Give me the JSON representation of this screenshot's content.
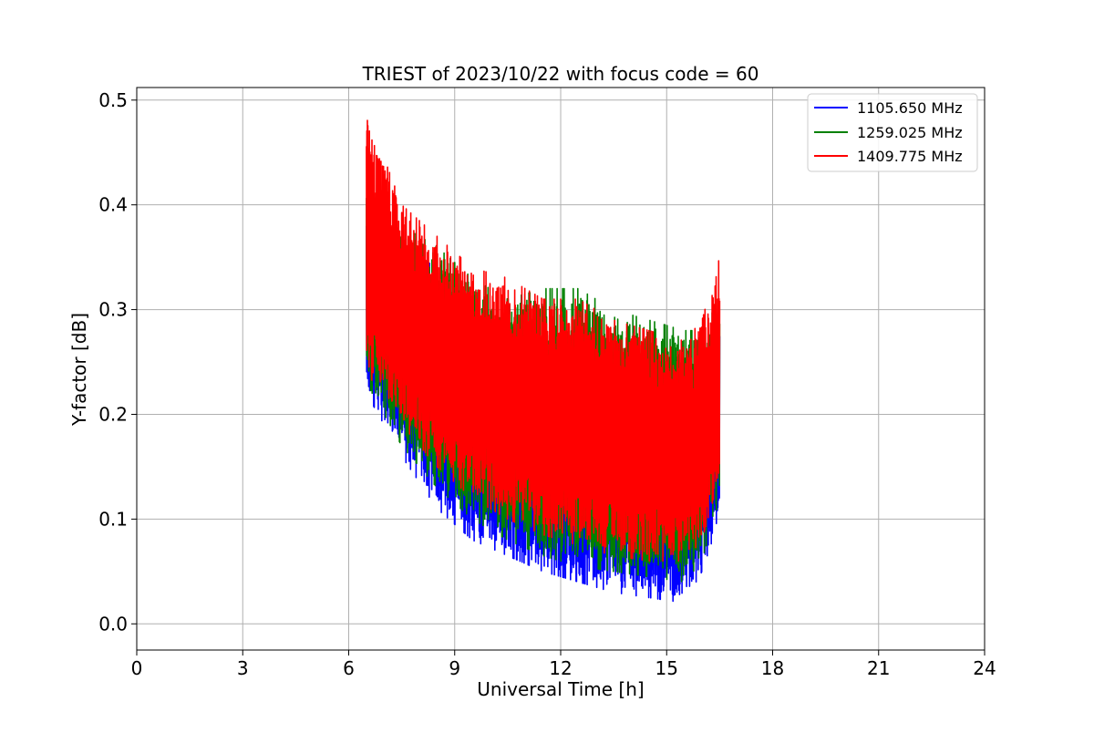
{
  "chart_data": {
    "type": "line",
    "title": "TRIEST of 2023/10/22 with focus code = 60",
    "xlabel": "Universal Time [h]",
    "ylabel": "Y-factor [dB]",
    "xlim": [
      0,
      24
    ],
    "ylim": [
      -0.025,
      0.512
    ],
    "xticks": [
      0,
      3,
      6,
      9,
      12,
      15,
      18,
      21,
      24
    ],
    "yticks": [
      0.0,
      0.1,
      0.2,
      0.3,
      0.4,
      0.5
    ],
    "ytick_labels": [
      "0.0",
      "0.1",
      "0.2",
      "0.3",
      "0.4",
      "0.5"
    ],
    "grid": true,
    "legend_position": "top-right",
    "time_range_hours": [
      6.5,
      16.5
    ],
    "series": [
      {
        "name": "1105.650 MHz",
        "color": "#0000ff",
        "envelope_low": [
          [
            6.5,
            0.22
          ],
          [
            7.5,
            0.16
          ],
          [
            8.5,
            0.11
          ],
          [
            9.5,
            0.08
          ],
          [
            10.5,
            0.065
          ],
          [
            11.5,
            0.05
          ],
          [
            12.5,
            0.04
          ],
          [
            13.5,
            0.03
          ],
          [
            14.5,
            0.025
          ],
          [
            15.5,
            0.02
          ],
          [
            16.0,
            0.05
          ],
          [
            16.5,
            0.1
          ]
        ],
        "envelope_high": [
          [
            6.5,
            0.4
          ],
          [
            7.5,
            0.36
          ],
          [
            8.5,
            0.34
          ],
          [
            9.5,
            0.3
          ],
          [
            10.5,
            0.27
          ],
          [
            11.5,
            0.26
          ],
          [
            12.5,
            0.25
          ],
          [
            13.5,
            0.24
          ],
          [
            14.5,
            0.24
          ],
          [
            15.5,
            0.25
          ],
          [
            16.0,
            0.26
          ],
          [
            16.5,
            0.3
          ]
        ]
      },
      {
        "name": "1259.025 MHz",
        "color": "#008000",
        "envelope_low": [
          [
            6.5,
            0.23
          ],
          [
            7.5,
            0.17
          ],
          [
            8.5,
            0.13
          ],
          [
            9.5,
            0.1
          ],
          [
            10.5,
            0.08
          ],
          [
            11.5,
            0.065
          ],
          [
            12.5,
            0.055
          ],
          [
            13.5,
            0.05
          ],
          [
            14.5,
            0.045
          ],
          [
            15.5,
            0.04
          ],
          [
            16.0,
            0.06
          ],
          [
            16.5,
            0.12
          ]
        ],
        "envelope_high": [
          [
            6.5,
            0.43
          ],
          [
            7.5,
            0.38
          ],
          [
            8.5,
            0.36
          ],
          [
            9.5,
            0.33
          ],
          [
            10.5,
            0.31
          ],
          [
            11.5,
            0.32
          ],
          [
            12.5,
            0.32
          ],
          [
            13.5,
            0.3
          ],
          [
            14.5,
            0.29
          ],
          [
            15.5,
            0.28
          ],
          [
            16.0,
            0.28
          ],
          [
            16.5,
            0.31
          ]
        ]
      },
      {
        "name": "1409.775 MHz",
        "color": "#ff0000",
        "envelope_low": [
          [
            6.5,
            0.24
          ],
          [
            7.5,
            0.19
          ],
          [
            8.5,
            0.15
          ],
          [
            9.5,
            0.12
          ],
          [
            10.5,
            0.1
          ],
          [
            11.5,
            0.085
          ],
          [
            12.5,
            0.075
          ],
          [
            13.5,
            0.065
          ],
          [
            14.5,
            0.06
          ],
          [
            15.5,
            0.06
          ],
          [
            16.0,
            0.08
          ],
          [
            16.5,
            0.14
          ]
        ],
        "envelope_high": [
          [
            6.5,
            0.49
          ],
          [
            7.5,
            0.4
          ],
          [
            8.5,
            0.37
          ],
          [
            9.5,
            0.34
          ],
          [
            10.5,
            0.33
          ],
          [
            11.5,
            0.31
          ],
          [
            12.5,
            0.31
          ],
          [
            13.5,
            0.29
          ],
          [
            14.5,
            0.28
          ],
          [
            15.5,
            0.27
          ],
          [
            16.0,
            0.29
          ],
          [
            16.5,
            0.35
          ]
        ]
      }
    ]
  }
}
